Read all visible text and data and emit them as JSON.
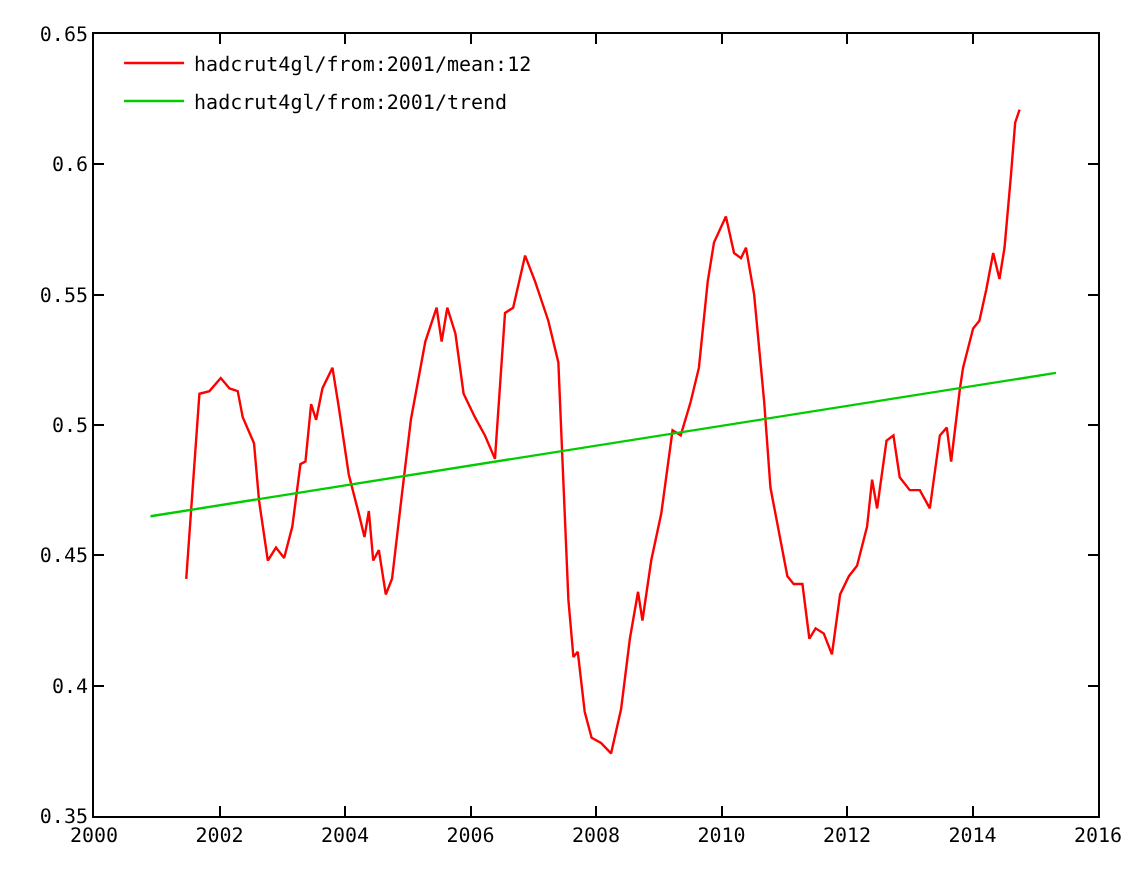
{
  "chart_data": {
    "type": "line",
    "xlim": [
      2000,
      2016
    ],
    "ylim": [
      0.35,
      0.65
    ],
    "xticks": [
      2000,
      2002,
      2004,
      2006,
      2008,
      2010,
      2012,
      2014,
      2016
    ],
    "yticks": [
      0.35,
      0.4,
      0.45,
      0.5,
      0.55,
      0.6,
      0.65
    ],
    "grid": false,
    "legend": "top left",
    "marker": "none",
    "line_style": "solid",
    "series": [
      {
        "name": "hadcrut4gl/from:2001/mean:12",
        "color": "#ff0000",
        "x": [
          2001.47,
          2001.68,
          2001.84,
          2002.02,
          2002.16,
          2002.29,
          2002.37,
          2002.55,
          2002.63,
          2002.77,
          2002.9,
          2003.03,
          2003.16,
          2003.29,
          2003.37,
          2003.46,
          2003.54,
          2003.64,
          2003.8,
          2003.9,
          2004.06,
          2004.22,
          2004.31,
          2004.38,
          2004.45,
          2004.54,
          2004.65,
          2004.75,
          2004.91,
          2005.05,
          2005.28,
          2005.46,
          2005.54,
          2005.63,
          2005.76,
          2005.89,
          2006.07,
          2006.23,
          2006.39,
          2006.55,
          2006.68,
          2006.87,
          2007.03,
          2007.24,
          2007.4,
          2007.47,
          2007.56,
          2007.64,
          2007.71,
          2007.82,
          2007.93,
          2008.08,
          2008.24,
          2008.4,
          2008.54,
          2008.67,
          2008.74,
          2008.88,
          2009.04,
          2009.22,
          2009.35,
          2009.51,
          2009.64,
          2009.78,
          2009.88,
          2010.07,
          2010.2,
          2010.31,
          2010.39,
          2010.52,
          2010.68,
          2010.78,
          2011.05,
          2011.15,
          2011.29,
          2011.4,
          2011.5,
          2011.63,
          2011.76,
          2011.89,
          2012.03,
          2012.16,
          2012.32,
          2012.4,
          2012.48,
          2012.63,
          2012.74,
          2012.84,
          2013.0,
          2013.16,
          2013.32,
          2013.48,
          2013.59,
          2013.66,
          2013.8,
          2013.85,
          2014.01,
          2014.11,
          2014.22,
          2014.33,
          2014.43,
          2014.51,
          2014.61,
          2014.68,
          2014.75
        ],
        "values": [
          0.441,
          0.512,
          0.513,
          0.518,
          0.514,
          0.513,
          0.503,
          0.493,
          0.471,
          0.448,
          0.453,
          0.449,
          0.461,
          0.485,
          0.486,
          0.508,
          0.502,
          0.514,
          0.522,
          0.507,
          0.481,
          0.466,
          0.457,
          0.467,
          0.448,
          0.452,
          0.435,
          0.441,
          0.474,
          0.502,
          0.532,
          0.545,
          0.532,
          0.545,
          0.535,
          0.512,
          0.503,
          0.496,
          0.487,
          0.543,
          0.545,
          0.565,
          0.555,
          0.54,
          0.524,
          0.484,
          0.433,
          0.411,
          0.413,
          0.39,
          0.38,
          0.378,
          0.374,
          0.391,
          0.418,
          0.436,
          0.425,
          0.448,
          0.466,
          0.498,
          0.496,
          0.509,
          0.522,
          0.555,
          0.57,
          0.58,
          0.566,
          0.564,
          0.568,
          0.55,
          0.509,
          0.476,
          0.442,
          0.439,
          0.439,
          0.418,
          0.422,
          0.42,
          0.412,
          0.435,
          0.442,
          0.446,
          0.461,
          0.479,
          0.468,
          0.494,
          0.496,
          0.48,
          0.475,
          0.475,
          0.468,
          0.496,
          0.499,
          0.486,
          0.514,
          0.522,
          0.537,
          0.54,
          0.552,
          0.566,
          0.556,
          0.568,
          0.595,
          0.616,
          0.621
        ]
      },
      {
        "name": "hadcrut4gl/from:2001/trend",
        "color": "#00cc00",
        "x": [
          2000.9,
          2015.33
        ],
        "values": [
          0.465,
          0.52
        ]
      }
    ]
  }
}
